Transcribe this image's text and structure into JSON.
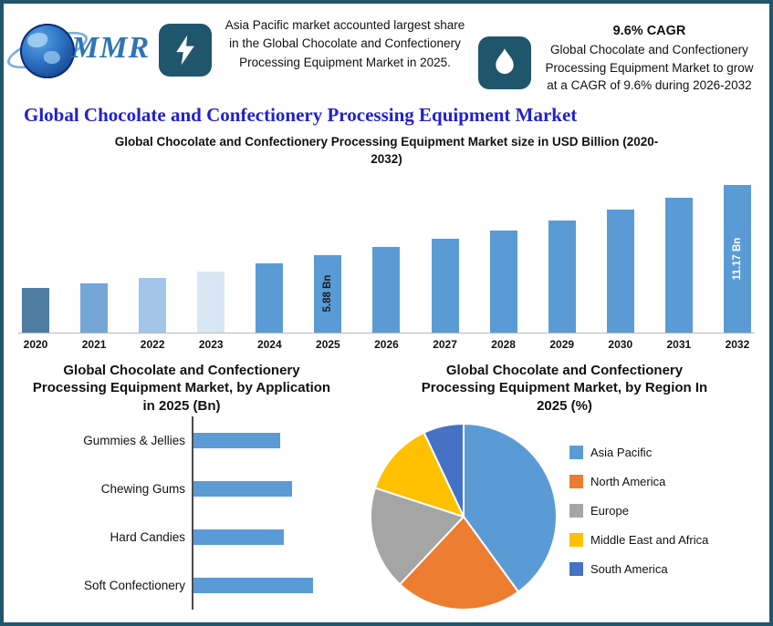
{
  "header": {
    "logo_text": "MMR",
    "callout_left": "Asia Pacific market accounted largest share in the Global Chocolate and Confectionery Processing Equipment Market in 2025.",
    "cagr_title": "9.6% CAGR",
    "callout_right": "Global Chocolate and Confectionery Processing Equipment Market to grow at a CAGR of 9.6% during 2026-2032",
    "icons": [
      "globe-icon",
      "lightning-icon",
      "flame-icon"
    ]
  },
  "page_title": "Global Chocolate and Confectionery Processing Equipment Market",
  "colors": {
    "border": "#20566B",
    "icon_bg": "#20566B",
    "title_blue": "#2121CE",
    "bar_blue": "#5B9BD5"
  },
  "chart_data": [
    {
      "type": "bar",
      "title": "Global Chocolate and Confectionery Processing Equipment Market size in USD Billion (2020-2032)",
      "categories": [
        "2020",
        "2021",
        "2022",
        "2023",
        "2024",
        "2025",
        "2026",
        "2027",
        "2028",
        "2029",
        "2030",
        "2031",
        "2032"
      ],
      "values": [
        3.35,
        3.7,
        4.1,
        4.6,
        5.25,
        5.88,
        6.44,
        7.06,
        7.74,
        8.48,
        9.3,
        10.19,
        11.17
      ],
      "bar_colors": [
        "#4E7CA1",
        "#74A7D6",
        "#A3C6E8",
        "#D9E6F4",
        "#5B9BD5",
        "#5B9BD5",
        "#5B9BD5",
        "#5B9BD5",
        "#5B9BD5",
        "#5B9BD5",
        "#5B9BD5",
        "#5B9BD5",
        "#5B9BD5"
      ],
      "data_labels": [
        {
          "index": 5,
          "text": "5.88 Bn",
          "color": "#1a1a1a"
        },
        {
          "index": 12,
          "text": "11.17 Bn",
          "color": "#ffffff"
        }
      ],
      "ylim": [
        0,
        12
      ],
      "grid": false,
      "legend": "none"
    },
    {
      "type": "bar-horizontal",
      "title": "Global Chocolate and Confectionery Processing Equipment Market, by Application in 2025 (Bn)",
      "categories": [
        "Gummies & Jellies",
        "Chewing Gums",
        "Hard Candies",
        "Soft Confectionery"
      ],
      "values": [
        0.94,
        1.07,
        0.98,
        1.3
      ],
      "bar_color": "#5B9BD5",
      "xlim": [
        0,
        1.8
      ],
      "grid": false,
      "legend": "none"
    },
    {
      "type": "pie",
      "title": "Global Chocolate and Confectionery Processing Equipment Market, by Region In 2025 (%)",
      "labels": [
        "Asia Pacific",
        "North America",
        "Europe",
        "Middle East and Africa",
        "South America"
      ],
      "values": [
        40,
        22,
        18,
        13,
        7
      ],
      "colors": [
        "#5B9BD5",
        "#ED7D31",
        "#A5A5A5",
        "#FFC000",
        "#4472C4"
      ],
      "legend_position": "right",
      "start_angle_deg": -90
    }
  ]
}
